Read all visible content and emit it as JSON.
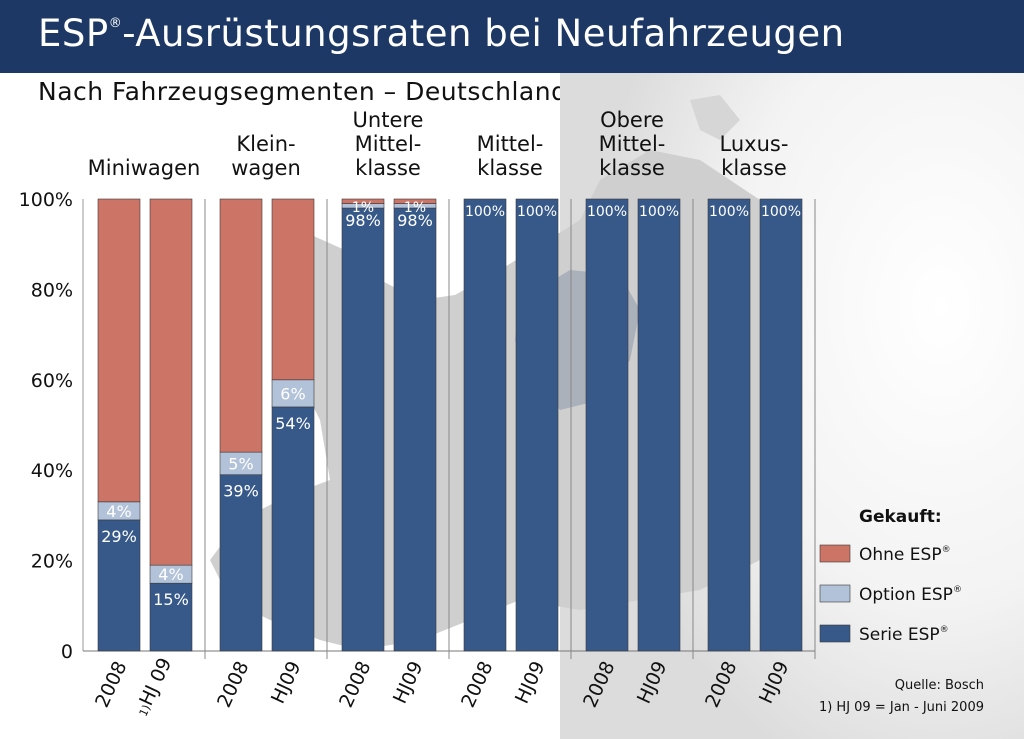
{
  "title": "ESP",
  "title_mark": "®",
  "title_rest": "-Ausrüstungsraten bei Neufahrzeugen",
  "subtitle": "Nach Fahrzeugsegmenten – Deutschland",
  "source": "Quelle: Bosch",
  "footnote": "1) HJ 09 = Jan - Juni 2009",
  "legend_title": "Gekauft:",
  "colors": {
    "ohne": "#cc7466",
    "option": "#b2c2d8",
    "serie": "#37598a",
    "header": "#1d3865"
  },
  "chart_data": {
    "type": "bar",
    "stacked": true,
    "ylim": [
      0,
      100
    ],
    "y_ticks": [
      "0",
      "20%",
      "40%",
      "60%",
      "80%",
      "100%"
    ],
    "legend_position": "right",
    "groups": [
      {
        "label": [
          "Miniwagen"
        ],
        "bars": [
          {
            "x": "2008",
            "serie": 29,
            "option": 4,
            "ohne": 67,
            "serie_label": "29%",
            "option_label": "4%"
          },
          {
            "x": "HJ 09",
            "x_mark": "1)",
            "serie": 15,
            "option": 4,
            "ohne": 81,
            "serie_label": "15%",
            "option_label": "4%"
          }
        ]
      },
      {
        "label": [
          "Klein-",
          "wagen"
        ],
        "bars": [
          {
            "x": "2008",
            "serie": 39,
            "option": 5,
            "ohne": 56,
            "serie_label": "39%",
            "option_label": "5%"
          },
          {
            "x": "HJ09",
            "serie": 54,
            "option": 6,
            "ohne": 40,
            "serie_label": "54%",
            "option_label": "6%"
          }
        ]
      },
      {
        "label": [
          "Untere",
          "Mittel-",
          "klasse"
        ],
        "bars": [
          {
            "x": "2008",
            "serie": 98,
            "option": 1,
            "ohne": 1,
            "serie_label": "98%",
            "option_label": "1%"
          },
          {
            "x": "HJ09",
            "serie": 98,
            "option": 1,
            "ohne": 1,
            "serie_label": "98%",
            "option_label": "1%"
          }
        ]
      },
      {
        "label": [
          "Mittel-",
          "klasse"
        ],
        "bars": [
          {
            "x": "2008",
            "serie": 100,
            "option": 0,
            "ohne": 0,
            "serie_label": "100%"
          },
          {
            "x": "HJ09",
            "serie": 100,
            "option": 0,
            "ohne": 0,
            "serie_label": "100%"
          }
        ]
      },
      {
        "label": [
          "Obere",
          "Mittel-",
          "klasse"
        ],
        "bars": [
          {
            "x": "2008",
            "serie": 100,
            "option": 0,
            "ohne": 0,
            "serie_label": "100%"
          },
          {
            "x": "HJ09",
            "serie": 100,
            "option": 0,
            "ohne": 0,
            "serie_label": "100%"
          }
        ]
      },
      {
        "label": [
          "Luxus-",
          "klasse"
        ],
        "bars": [
          {
            "x": "2008",
            "serie": 100,
            "option": 0,
            "ohne": 0,
            "serie_label": "100%"
          },
          {
            "x": "HJ09",
            "serie": 100,
            "option": 0,
            "ohne": 0,
            "serie_label": "100%"
          }
        ]
      }
    ],
    "series": [
      {
        "key": "ohne",
        "name": "Ohne ESP",
        "mark": "®"
      },
      {
        "key": "option",
        "name": "Option ESP",
        "mark": "®"
      },
      {
        "key": "serie",
        "name": "Serie ESP",
        "mark": "®"
      }
    ]
  }
}
